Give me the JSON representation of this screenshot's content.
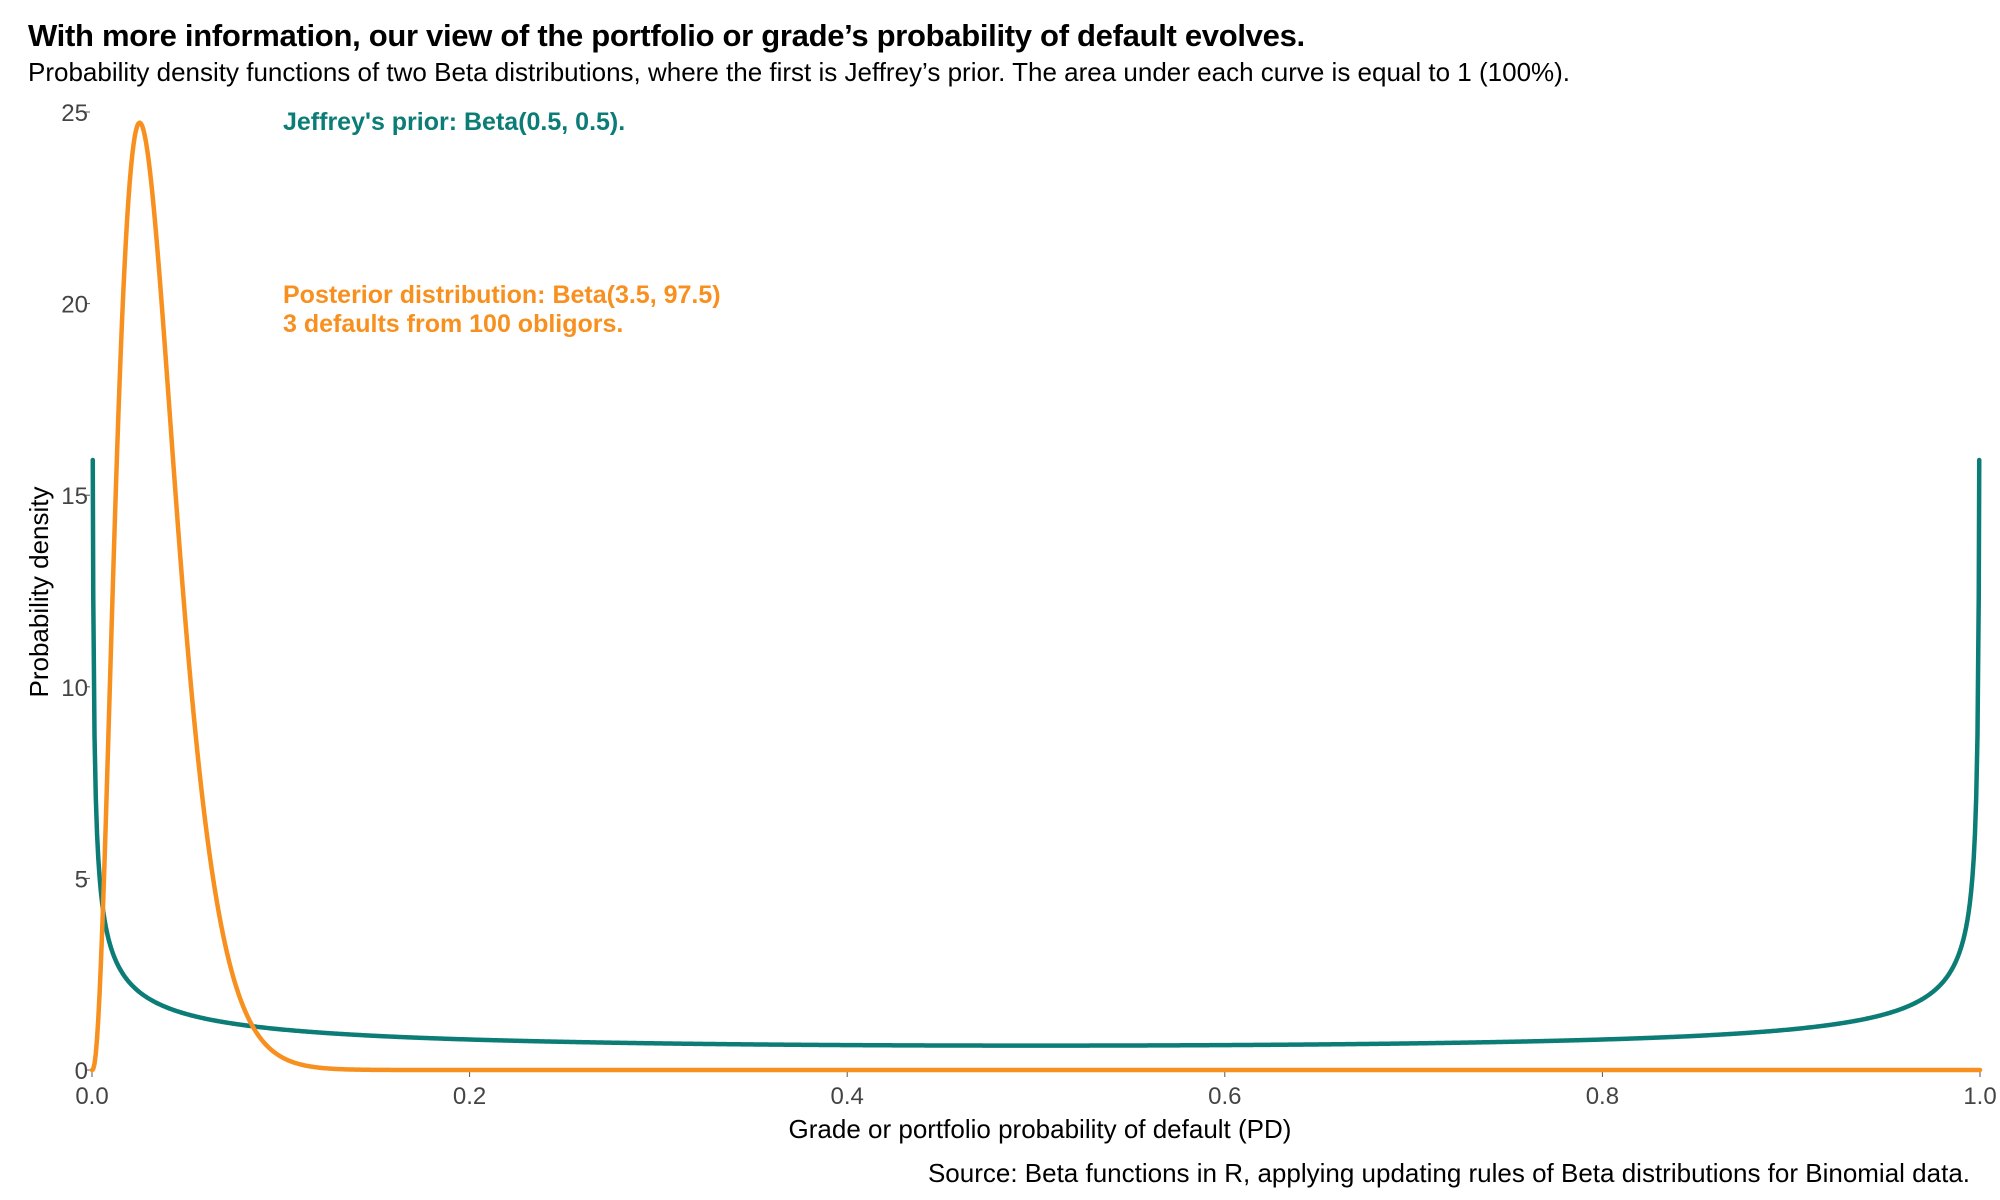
{
  "chart_data": {
    "type": "line",
    "title": "With more information, our view of the portfolio or grade’s probability of default evolves.",
    "subtitle": "Probability density functions of two Beta distributions, where the first is Jeffrey’s prior. The area under each curve is equal to 1 (100%).",
    "source": "Source: Beta functions in R, applying updating rules of Beta distributions for Binomial data.",
    "xlabel": "Grade or portfolio probability of default (PD)",
    "ylabel": "Probability density",
    "xlim": [
      0,
      1
    ],
    "ylim": [
      0,
      25
    ],
    "x_ticks": [
      "0.0",
      "0.2",
      "0.4",
      "0.6",
      "0.8",
      "1.0"
    ],
    "y_ticks": [
      "0",
      "5",
      "10",
      "15",
      "20",
      "25"
    ],
    "grid": false,
    "colors": {
      "prior": "#0c7d76",
      "posterior": "#f7901e",
      "text": "#000000",
      "tick_text": "#444444"
    },
    "series": [
      {
        "key": "prior",
        "distribution": "Beta",
        "alpha": 0.5,
        "beta": 0.5,
        "x": [
          0.001,
          0.005,
          0.01,
          0.02,
          0.03,
          0.05,
          0.08,
          0.1,
          0.15,
          0.2,
          0.3,
          0.4,
          0.5,
          0.6,
          0.7,
          0.8,
          0.85,
          0.9,
          0.92,
          0.95,
          0.97,
          0.98,
          0.99,
          0.995,
          0.999
        ],
        "y": [
          10.07,
          4.51,
          3.2,
          2.27,
          1.87,
          1.46,
          1.17,
          1.06,
          0.89,
          0.8,
          0.69,
          0.65,
          0.64,
          0.65,
          0.69,
          0.8,
          0.89,
          1.06,
          1.17,
          1.46,
          1.87,
          2.27,
          3.2,
          4.51,
          10.07
        ]
      },
      {
        "key": "posterior",
        "distribution": "Beta",
        "alpha": 3.5,
        "beta": 97.5,
        "x": [
          0.0,
          0.005,
          0.01,
          0.015,
          0.02,
          0.025,
          0.03,
          0.035,
          0.04,
          0.05,
          0.06,
          0.07,
          0.08,
          0.09,
          0.1,
          0.12,
          0.15,
          0.2,
          0.3,
          0.5,
          0.7,
          0.9,
          1.0
        ],
        "y": [
          0.0,
          4.8,
          14.2,
          21.3,
          24.4,
          24.8,
          21.5,
          17.5,
          13.9,
          8.2,
          3.6,
          1.3,
          0.55,
          0.2,
          0.08,
          0.02,
          0.0,
          0.0,
          0.0,
          0.0,
          0.0,
          0.0,
          0.0
        ]
      }
    ],
    "annotations": [
      {
        "key": "prior",
        "lines": [
          "Jeffrey's prior: Beta(0.5, 0.5)."
        ]
      },
      {
        "key": "posterior",
        "lines": [
          "Posterior distribution: Beta(3.5, 97.5)",
          "3 defaults from 100 obligors."
        ]
      }
    ]
  }
}
